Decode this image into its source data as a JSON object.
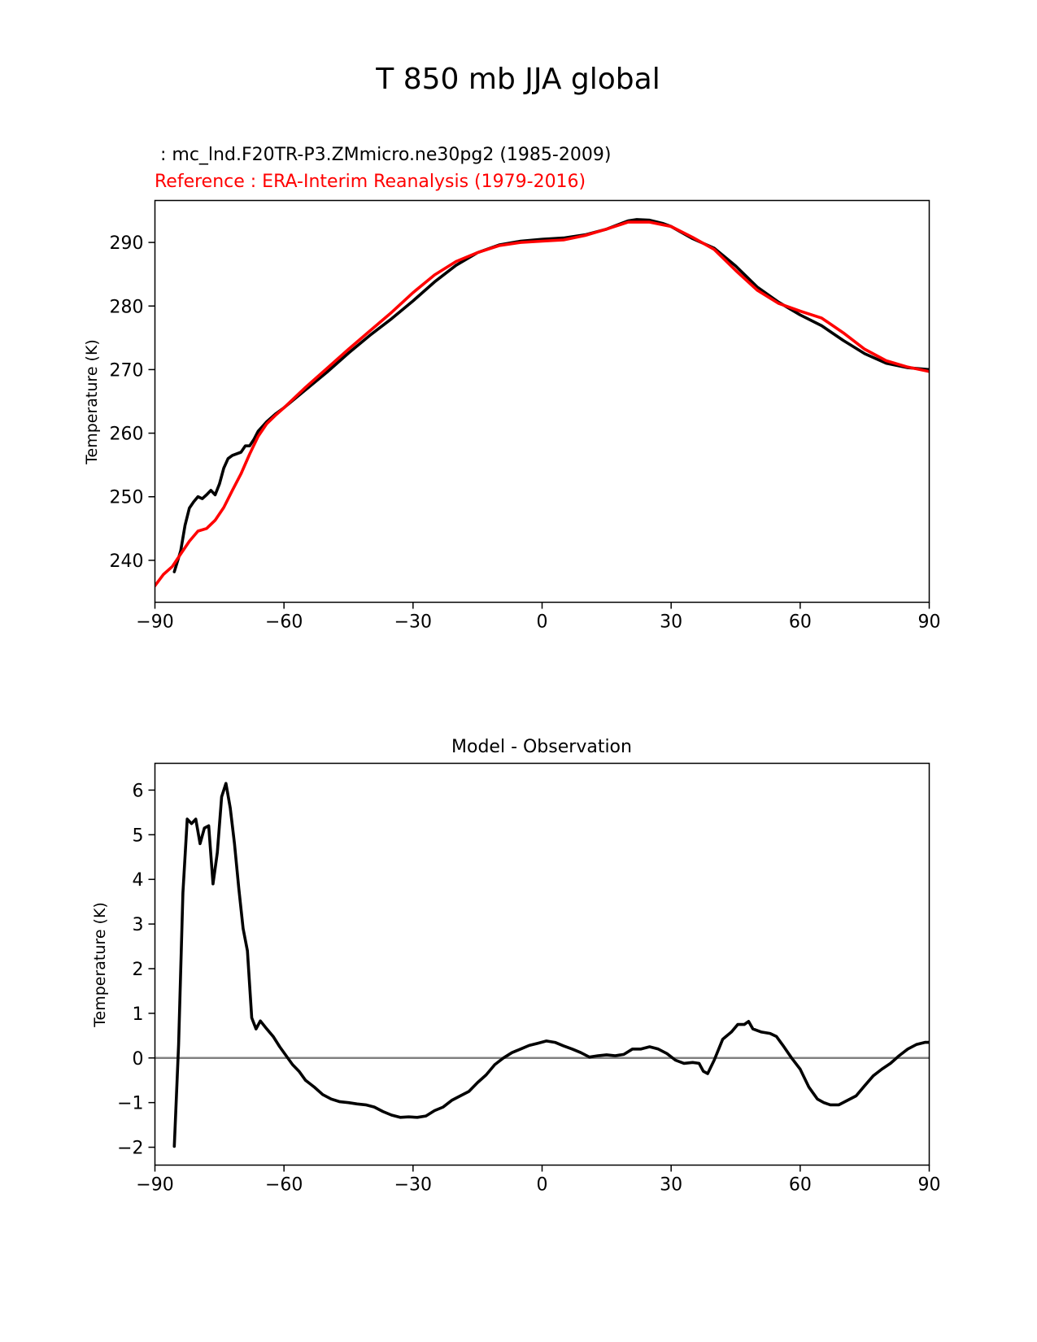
{
  "figure": {
    "title": "T 850 mb JJA global",
    "colors": {
      "test": "#000000",
      "reference": "#ff0000",
      "zero_line": "#808080"
    }
  },
  "chart_data": [
    {
      "type": "line",
      "test_label": " : mc_lnd.F20TR-P3.ZMmicro.ne30pg2 (1985-2009)",
      "reference_label": "Reference : ERA-Interim Reanalysis (1979-2016)",
      "xlabel": "",
      "ylabel": "Temperature (K)",
      "xlim": [
        -90,
        90
      ],
      "ylim": [
        233.4,
        296.6
      ],
      "xticks": [
        -90,
        -60,
        -30,
        0,
        30,
        60,
        90
      ],
      "xtick_labels": [
        "−90",
        "−60",
        "−30",
        "0",
        "30",
        "60",
        "90"
      ],
      "yticks": [
        240,
        250,
        260,
        270,
        280,
        290
      ],
      "ytick_labels": [
        "240",
        "250",
        "260",
        "270",
        "280",
        "290"
      ],
      "series": [
        {
          "name": "test",
          "color": "#000000",
          "points": [
            [
              -85.5,
              238.2
            ],
            [
              -84,
              241.5
            ],
            [
              -83,
              245.5
            ],
            [
              -82,
              248.2
            ],
            [
              -81,
              249.2
            ],
            [
              -80,
              250
            ],
            [
              -79,
              249.7
            ],
            [
              -78,
              250.3
            ],
            [
              -77,
              251
            ],
            [
              -76,
              250.3
            ],
            [
              -75,
              252
            ],
            [
              -74,
              254.5
            ],
            [
              -73,
              256
            ],
            [
              -72,
              256.5
            ],
            [
              -70,
              257
            ],
            [
              -69,
              258
            ],
            [
              -68,
              258
            ],
            [
              -67,
              259
            ],
            [
              -66,
              260.3
            ],
            [
              -64,
              261.8
            ],
            [
              -62,
              263
            ],
            [
              -60,
              264
            ],
            [
              -55,
              266.8
            ],
            [
              -50,
              269.6
            ],
            [
              -45,
              272.6
            ],
            [
              -40,
              275.4
            ],
            [
              -35,
              278
            ],
            [
              -30,
              280.8
            ],
            [
              -25,
              283.8
            ],
            [
              -20,
              286.4
            ],
            [
              -15,
              288.4
            ],
            [
              -10,
              289.6
            ],
            [
              -5,
              290.2
            ],
            [
              0,
              290.5
            ],
            [
              5,
              290.7
            ],
            [
              10,
              291.2
            ],
            [
              15,
              292.1
            ],
            [
              20,
              293.4
            ],
            [
              22,
              293.6
            ],
            [
              25,
              293.5
            ],
            [
              28,
              293
            ],
            [
              30,
              292.5
            ],
            [
              35,
              290.6
            ],
            [
              40,
              289.1
            ],
            [
              45,
              286.3
            ],
            [
              50,
              283
            ],
            [
              55,
              280.6
            ],
            [
              60,
              278.6
            ],
            [
              65,
              276.9
            ],
            [
              70,
              274.6
            ],
            [
              75,
              272.5
            ],
            [
              80,
              271
            ],
            [
              85,
              270.3
            ],
            [
              90,
              270
            ]
          ]
        },
        {
          "name": "reference",
          "color": "#ff0000",
          "points": [
            [
              -90,
              236
            ],
            [
              -88,
              237.8
            ],
            [
              -86,
              239
            ],
            [
              -84,
              241
            ],
            [
              -82,
              243
            ],
            [
              -80,
              244.6
            ],
            [
              -78,
              245
            ],
            [
              -76,
              246.3
            ],
            [
              -74,
              248.3
            ],
            [
              -72,
              251
            ],
            [
              -70,
              253.6
            ],
            [
              -68,
              256.7
            ],
            [
              -66,
              259.5
            ],
            [
              -64,
              261.5
            ],
            [
              -62,
              262.8
            ],
            [
              -60,
              264
            ],
            [
              -55,
              267.2
            ],
            [
              -50,
              270.2
            ],
            [
              -45,
              273.2
            ],
            [
              -40,
              276.1
            ],
            [
              -35,
              279
            ],
            [
              -30,
              282.1
            ],
            [
              -25,
              284.9
            ],
            [
              -20,
              287
            ],
            [
              -15,
              288.4
            ],
            [
              -10,
              289.5
            ],
            [
              -5,
              290
            ],
            [
              0,
              290.2
            ],
            [
              5,
              290.4
            ],
            [
              10,
              291.1
            ],
            [
              15,
              292.1
            ],
            [
              20,
              293.2
            ],
            [
              25,
              293.2
            ],
            [
              30,
              292.5
            ],
            [
              35,
              290.8
            ],
            [
              40,
              288.9
            ],
            [
              45,
              285.6
            ],
            [
              50,
              282.5
            ],
            [
              55,
              280.4
            ],
            [
              60,
              279.2
            ],
            [
              65,
              278.1
            ],
            [
              70,
              275.8
            ],
            [
              75,
              273.2
            ],
            [
              80,
              271.4
            ],
            [
              85,
              270.4
            ],
            [
              90,
              269.7
            ]
          ]
        }
      ]
    },
    {
      "type": "line",
      "title": "Model - Observation",
      "xlabel": "",
      "ylabel": "Temperature (K)",
      "xlim": [
        -90,
        90
      ],
      "ylim": [
        -2.4,
        6.6
      ],
      "xticks": [
        -90,
        -60,
        -30,
        0,
        30,
        60,
        90
      ],
      "xtick_labels": [
        "−90",
        "−60",
        "−30",
        "0",
        "30",
        "60",
        "90"
      ],
      "yticks": [
        -2,
        -1,
        0,
        1,
        2,
        3,
        4,
        5,
        6
      ],
      "ytick_labels": [
        "−2",
        "−1",
        "0",
        "1",
        "2",
        "3",
        "4",
        "5",
        "6"
      ],
      "zero_line": 0,
      "series": [
        {
          "name": "difference",
          "color": "#000000",
          "points": [
            [
              -85.5,
              -1.98
            ],
            [
              -84.5,
              0.3
            ],
            [
              -83.5,
              3.7
            ],
            [
              -82.5,
              5.35
            ],
            [
              -81.5,
              5.25
            ],
            [
              -80.5,
              5.35
            ],
            [
              -79.5,
              4.8
            ],
            [
              -78.5,
              5.15
            ],
            [
              -77.5,
              5.2
            ],
            [
              -76.5,
              3.9
            ],
            [
              -75.5,
              4.6
            ],
            [
              -74.5,
              5.85
            ],
            [
              -73.5,
              6.15
            ],
            [
              -72.5,
              5.6
            ],
            [
              -71.5,
              4.8
            ],
            [
              -70.5,
              3.8
            ],
            [
              -69.5,
              2.9
            ],
            [
              -68.5,
              2.4
            ],
            [
              -67.5,
              0.9
            ],
            [
              -66.5,
              0.65
            ],
            [
              -65.5,
              0.83
            ],
            [
              -64,
              0.65
            ],
            [
              -62.5,
              0.48
            ],
            [
              -61,
              0.25
            ],
            [
              -59.5,
              0.05
            ],
            [
              -58,
              -0.15
            ],
            [
              -56.5,
              -0.3
            ],
            [
              -55,
              -0.5
            ],
            [
              -53,
              -0.65
            ],
            [
              -51,
              -0.82
            ],
            [
              -49,
              -0.92
            ],
            [
              -47,
              -0.98
            ],
            [
              -45,
              -1
            ],
            [
              -43,
              -1.03
            ],
            [
              -41,
              -1.05
            ],
            [
              -39,
              -1.1
            ],
            [
              -37,
              -1.2
            ],
            [
              -35,
              -1.28
            ],
            [
              -33,
              -1.33
            ],
            [
              -31,
              -1.32
            ],
            [
              -29,
              -1.33
            ],
            [
              -27,
              -1.3
            ],
            [
              -25,
              -1.18
            ],
            [
              -23,
              -1.1
            ],
            [
              -21,
              -0.95
            ],
            [
              -19,
              -0.85
            ],
            [
              -17,
              -0.75
            ],
            [
              -15,
              -0.55
            ],
            [
              -13,
              -0.38
            ],
            [
              -11,
              -0.15
            ],
            [
              -9,
              0
            ],
            [
              -7,
              0.12
            ],
            [
              -5,
              0.2
            ],
            [
              -3,
              0.28
            ],
            [
              -1,
              0.33
            ],
            [
              1,
              0.38
            ],
            [
              3,
              0.35
            ],
            [
              5,
              0.27
            ],
            [
              7,
              0.2
            ],
            [
              9,
              0.12
            ],
            [
              11,
              0.02
            ],
            [
              13,
              0.05
            ],
            [
              15,
              0.07
            ],
            [
              17,
              0.05
            ],
            [
              19,
              0.08
            ],
            [
              21,
              0.2
            ],
            [
              23,
              0.2
            ],
            [
              25,
              0.25
            ],
            [
              27,
              0.2
            ],
            [
              29,
              0.1
            ],
            [
              31,
              -0.05
            ],
            [
              33,
              -0.12
            ],
            [
              35,
              -0.1
            ],
            [
              36.5,
              -0.12
            ],
            [
              37.5,
              -0.3
            ],
            [
              38.5,
              -0.35
            ],
            [
              40,
              -0.05
            ],
            [
              42,
              0.42
            ],
            [
              44,
              0.58
            ],
            [
              45.5,
              0.75
            ],
            [
              47,
              0.75
            ],
            [
              48,
              0.82
            ],
            [
              49,
              0.65
            ],
            [
              51,
              0.58
            ],
            [
              53,
              0.55
            ],
            [
              54.5,
              0.48
            ],
            [
              56,
              0.28
            ],
            [
              58,
              0
            ],
            [
              60,
              -0.25
            ],
            [
              62,
              -0.65
            ],
            [
              64,
              -0.92
            ],
            [
              65.5,
              -1
            ],
            [
              67,
              -1.05
            ],
            [
              69,
              -1.05
            ],
            [
              71,
              -0.95
            ],
            [
              73,
              -0.85
            ],
            [
              75,
              -0.62
            ],
            [
              77,
              -0.4
            ],
            [
              79,
              -0.25
            ],
            [
              81,
              -0.12
            ],
            [
              83,
              0.05
            ],
            [
              85,
              0.2
            ],
            [
              87,
              0.3
            ],
            [
              89,
              0.35
            ],
            [
              90,
              0.35
            ]
          ]
        }
      ]
    }
  ]
}
